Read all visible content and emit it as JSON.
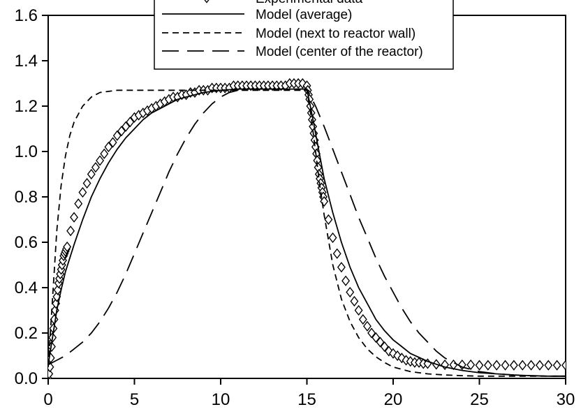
{
  "chart_data": {
    "type": "line",
    "title": "",
    "xlabel": "",
    "ylabel": "",
    "xlim": [
      0,
      30
    ],
    "ylim": [
      0,
      1.6
    ],
    "xticks": [
      "0",
      "5",
      "10",
      "15",
      "20",
      "25",
      "30"
    ],
    "yticks": [
      "0.0",
      "0.2",
      "0.4",
      "0.6",
      "0.8",
      "1.0",
      "1.2",
      "1.4",
      "1.6"
    ],
    "grid": false,
    "legend_position": "top-center",
    "legend": [
      {
        "label": "Experimental data",
        "style": "diamond-markers"
      },
      {
        "label": "Model (average)",
        "style": "solid"
      },
      {
        "label": "Model (next to reactor wall)",
        "style": "short-dash"
      },
      {
        "label": "Model (center of the reactor)",
        "style": "long-dash"
      }
    ],
    "series": [
      {
        "name": "Experimental data",
        "style": "diamond-markers",
        "x": [
          0,
          0.05,
          0.1,
          0.15,
          0.2,
          0.25,
          0.3,
          0.35,
          0.4,
          0.45,
          0.5,
          0.55,
          0.6,
          0.65,
          0.7,
          0.75,
          0.8,
          0.85,
          0.9,
          0.95,
          1.0,
          1.05,
          1.1,
          1.3,
          1.5,
          1.75,
          2.0,
          2.25,
          2.5,
          2.75,
          3.0,
          3.25,
          3.5,
          3.75,
          4.0,
          4.25,
          4.5,
          4.75,
          5.0,
          5.25,
          5.5,
          5.75,
          6.0,
          6.25,
          6.5,
          6.75,
          7.0,
          7.25,
          7.5,
          7.75,
          8.0,
          8.25,
          8.5,
          8.75,
          9.0,
          9.25,
          9.5,
          9.75,
          10.0,
          10.25,
          10.5,
          10.75,
          11.0,
          11.25,
          11.5,
          11.75,
          12.0,
          12.25,
          12.5,
          12.75,
          13.0,
          13.25,
          13.5,
          13.75,
          14.0,
          14.25,
          14.5,
          14.75,
          15.0,
          15.05,
          15.1,
          15.15,
          15.2,
          15.25,
          15.3,
          15.35,
          15.4,
          15.45,
          15.5,
          15.55,
          15.6,
          15.65,
          15.7,
          15.75,
          15.8,
          15.85,
          15.9,
          15.95,
          16.0,
          16.25,
          16.5,
          16.75,
          17.0,
          17.25,
          17.5,
          17.75,
          18.0,
          18.25,
          18.5,
          18.75,
          19.0,
          19.25,
          19.5,
          19.75,
          20.0,
          20.25,
          20.5,
          20.75,
          21.0,
          21.25,
          21.5,
          21.75,
          22.0,
          22.5,
          23.0,
          23.5,
          24.0,
          24.5,
          25.0,
          25.5,
          26.0,
          26.5,
          27.0,
          27.5,
          28.0,
          28.5,
          29.0,
          29.5,
          30.0
        ],
        "y": [
          0.0,
          0.02,
          0.05,
          0.09,
          0.14,
          0.18,
          0.22,
          0.26,
          0.3,
          0.33,
          0.36,
          0.39,
          0.42,
          0.44,
          0.46,
          0.48,
          0.5,
          0.52,
          0.54,
          0.55,
          0.56,
          0.57,
          0.58,
          0.65,
          0.71,
          0.77,
          0.82,
          0.86,
          0.9,
          0.93,
          0.96,
          0.99,
          1.02,
          1.04,
          1.07,
          1.09,
          1.11,
          1.13,
          1.15,
          1.16,
          1.17,
          1.18,
          1.19,
          1.2,
          1.21,
          1.22,
          1.23,
          1.24,
          1.24,
          1.25,
          1.25,
          1.26,
          1.26,
          1.27,
          1.27,
          1.27,
          1.28,
          1.28,
          1.28,
          1.28,
          1.28,
          1.29,
          1.29,
          1.29,
          1.29,
          1.29,
          1.29,
          1.29,
          1.29,
          1.29,
          1.29,
          1.29,
          1.29,
          1.29,
          1.3,
          1.3,
          1.3,
          1.3,
          1.29,
          1.27,
          1.25,
          1.23,
          1.2,
          1.17,
          1.14,
          1.11,
          1.08,
          1.05,
          1.02,
          0.99,
          0.96,
          0.93,
          0.9,
          0.88,
          0.86,
          0.84,
          0.82,
          0.8,
          0.78,
          0.7,
          0.62,
          0.55,
          0.49,
          0.43,
          0.38,
          0.34,
          0.3,
          0.26,
          0.23,
          0.2,
          0.18,
          0.16,
          0.14,
          0.12,
          0.11,
          0.1,
          0.09,
          0.08,
          0.075,
          0.07,
          0.07,
          0.065,
          0.065,
          0.062,
          0.06,
          0.06,
          0.06,
          0.06,
          0.058,
          0.058,
          0.058,
          0.058,
          0.058,
          0.058,
          0.058,
          0.058,
          0.058,
          0.058,
          0.058
        ]
      },
      {
        "name": "Model (average)",
        "style": "solid",
        "x": [
          0,
          0.25,
          0.5,
          0.75,
          1.0,
          1.5,
          2.0,
          2.5,
          3.0,
          3.5,
          4.0,
          4.5,
          5.0,
          5.5,
          6.0,
          6.5,
          7.0,
          7.5,
          8.0,
          8.5,
          9.0,
          10.0,
          11.0,
          12.0,
          13.0,
          14.0,
          15.0,
          15.25,
          15.5,
          15.75,
          16.0,
          16.5,
          17.0,
          17.5,
          18.0,
          18.5,
          19.0,
          19.5,
          20.0,
          20.5,
          21.0,
          22.0,
          23.0,
          24.0,
          25.0,
          26.0,
          27.0,
          28.0,
          29.0,
          30.0
        ],
        "y": [
          0.06,
          0.18,
          0.3,
          0.39,
          0.47,
          0.59,
          0.7,
          0.8,
          0.88,
          0.95,
          1.01,
          1.06,
          1.1,
          1.14,
          1.17,
          1.19,
          1.21,
          1.23,
          1.24,
          1.25,
          1.26,
          1.27,
          1.275,
          1.275,
          1.275,
          1.275,
          1.275,
          1.18,
          1.08,
          0.98,
          0.88,
          0.73,
          0.6,
          0.49,
          0.4,
          0.33,
          0.26,
          0.21,
          0.17,
          0.14,
          0.11,
          0.075,
          0.05,
          0.035,
          0.025,
          0.02,
          0.015,
          0.012,
          0.01,
          0.01
        ]
      },
      {
        "name": "Model (next to reactor wall)",
        "style": "short-dash",
        "x": [
          0,
          0.25,
          0.5,
          0.75,
          1.0,
          1.25,
          1.5,
          2.0,
          2.5,
          3.0,
          3.5,
          4.0,
          5.0,
          6.0,
          8.0,
          10.0,
          12.0,
          14.0,
          15.0,
          15.25,
          15.5,
          15.75,
          16.0,
          16.5,
          17.0,
          17.5,
          18.0,
          18.5,
          19.0,
          19.5,
          20.0,
          20.5,
          21.0,
          22.0,
          23.0,
          24.0,
          25.0,
          26.0,
          28.0,
          30.0
        ],
        "y": [
          0.05,
          0.35,
          0.65,
          0.85,
          0.98,
          1.07,
          1.13,
          1.2,
          1.24,
          1.26,
          1.265,
          1.27,
          1.27,
          1.27,
          1.27,
          1.27,
          1.27,
          1.27,
          1.27,
          1.15,
          1.0,
          0.85,
          0.72,
          0.5,
          0.35,
          0.25,
          0.18,
          0.13,
          0.095,
          0.07,
          0.05,
          0.04,
          0.03,
          0.02,
          0.015,
          0.012,
          0.01,
          0.01,
          0.01,
          0.01
        ]
      },
      {
        "name": "Model (center of the reactor)",
        "style": "long-dash",
        "x": [
          0,
          0.5,
          1.0,
          1.5,
          2.0,
          2.5,
          3.0,
          3.5,
          4.0,
          4.5,
          5.0,
          5.5,
          6.0,
          6.5,
          7.0,
          7.5,
          8.0,
          8.5,
          9.0,
          9.5,
          10.0,
          10.5,
          11.0,
          11.5,
          12.0,
          13.0,
          14.0,
          15.0,
          15.5,
          16.0,
          16.5,
          17.0,
          17.5,
          18.0,
          18.5,
          19.0,
          19.5,
          20.0,
          20.5,
          21.0,
          21.5,
          22.0,
          22.5,
          23.0,
          23.5,
          24.0,
          24.5,
          25.0,
          26.0,
          27.0,
          28.0,
          29.0,
          30.0
        ],
        "y": [
          0.06,
          0.08,
          0.1,
          0.13,
          0.16,
          0.2,
          0.25,
          0.31,
          0.38,
          0.46,
          0.55,
          0.64,
          0.73,
          0.82,
          0.91,
          0.99,
          1.06,
          1.12,
          1.17,
          1.21,
          1.24,
          1.26,
          1.27,
          1.275,
          1.275,
          1.275,
          1.275,
          1.275,
          1.2,
          1.11,
          1.01,
          0.91,
          0.81,
          0.71,
          0.62,
          0.53,
          0.45,
          0.38,
          0.31,
          0.25,
          0.2,
          0.16,
          0.12,
          0.09,
          0.07,
          0.05,
          0.04,
          0.03,
          0.02,
          0.015,
          0.012,
          0.01,
          0.01
        ]
      }
    ]
  }
}
